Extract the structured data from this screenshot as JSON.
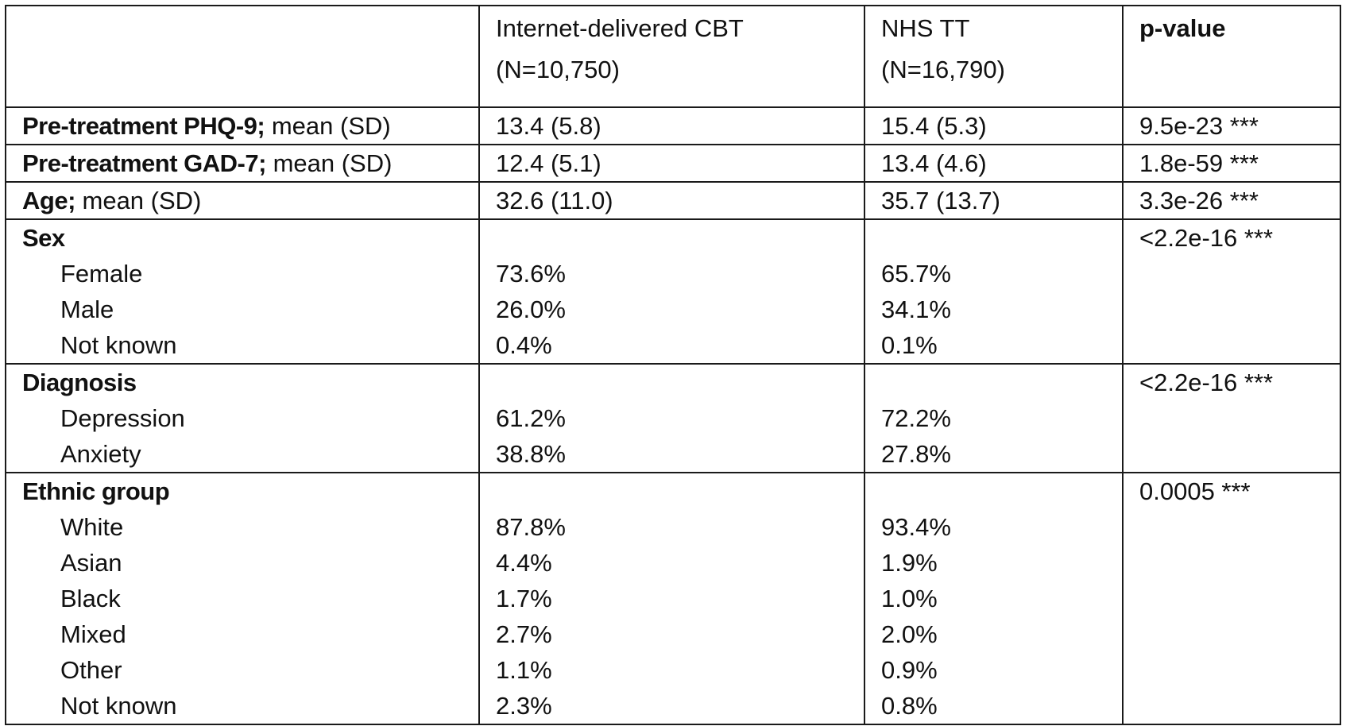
{
  "header": {
    "col1": "",
    "col2_line1": "Internet-delivered CBT",
    "col2_line2": "(N=10,750)",
    "col3_line1": "NHS TT",
    "col3_line2": "(N=16,790)",
    "col4": "p-value"
  },
  "rows": [
    {
      "bold": "Pre-treatment PHQ-9;",
      "rest": " mean (SD)",
      "icbt": "13.4 (5.8)",
      "nhs": "15.4 (5.3)",
      "p": "9.5e-23 ***"
    },
    {
      "bold": "Pre-treatment GAD-7;",
      "rest": " mean (SD)",
      "icbt": "12.4 (5.1)",
      "nhs": "13.4 (4.6)",
      "p": "1.8e-59 ***"
    },
    {
      "bold": "Age;",
      "rest": " mean (SD)",
      "icbt": "32.6 (11.0)",
      "nhs": "35.7 (13.7)",
      "p": "3.3e-26 ***"
    }
  ],
  "groups": [
    {
      "title": "Sex",
      "p": "<2.2e-16 ***",
      "items": [
        {
          "label": "Female",
          "icbt": "73.6%",
          "nhs": "65.7%"
        },
        {
          "label": "Male",
          "icbt": "26.0%",
          "nhs": "34.1%"
        },
        {
          "label": "Not known",
          "icbt": "0.4%",
          "nhs": "0.1%"
        }
      ]
    },
    {
      "title": "Diagnosis",
      "p": "<2.2e-16 ***",
      "items": [
        {
          "label": "Depression",
          "icbt": "61.2%",
          "nhs": "72.2%"
        },
        {
          "label": "Anxiety",
          "icbt": "38.8%",
          "nhs": "27.8%"
        }
      ]
    },
    {
      "title": "Ethnic group",
      "p": "0.0005 ***",
      "items": [
        {
          "label": "White",
          "icbt": "87.8%",
          "nhs": "93.4%"
        },
        {
          "label": "Asian",
          "icbt": "4.4%",
          "nhs": "1.9%"
        },
        {
          "label": "Black",
          "icbt": "1.7%",
          "nhs": "1.0%"
        },
        {
          "label": "Mixed",
          "icbt": "2.7%",
          "nhs": "2.0%"
        },
        {
          "label": "Other",
          "icbt": "1.1%",
          "nhs": "0.9%"
        },
        {
          "label": "Not known",
          "icbt": "2.3%",
          "nhs": "0.8%"
        }
      ]
    }
  ]
}
